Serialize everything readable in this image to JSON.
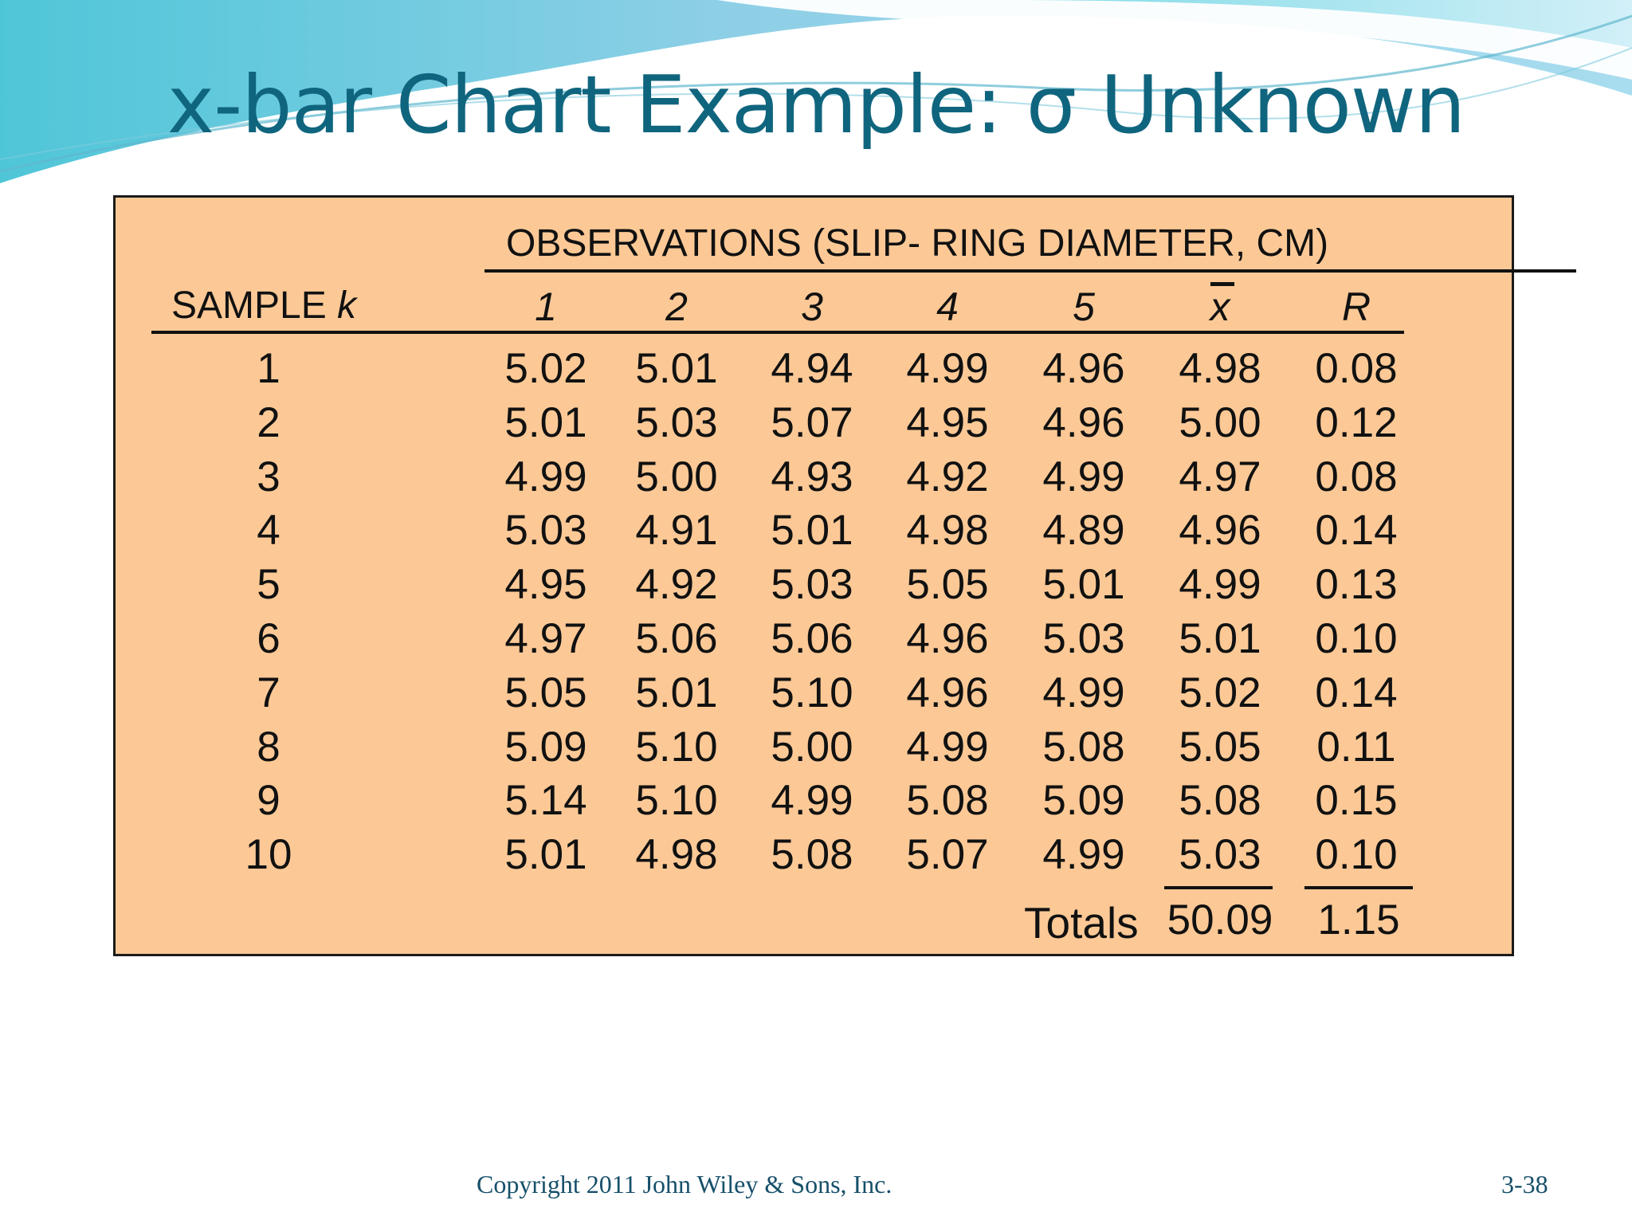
{
  "slide": {
    "title": "x-bar Chart Example: σ Unknown"
  },
  "table": {
    "observations_heading": "OBSERVATIONS (SLIP- RING DIAMETER, CM)",
    "sample_label_prefix": "SAMPLE ",
    "sample_label_var": "k",
    "column_headers": [
      "1",
      "2",
      "3",
      "4",
      "5",
      "x",
      "R"
    ],
    "rows": [
      {
        "k": "1",
        "obs": [
          "5.02",
          "5.01",
          "4.94",
          "4.99",
          "4.96"
        ],
        "xbar": "4.98",
        "r": "0.08"
      },
      {
        "k": "2",
        "obs": [
          "5.01",
          "5.03",
          "5.07",
          "4.95",
          "4.96"
        ],
        "xbar": "5.00",
        "r": "0.12"
      },
      {
        "k": "3",
        "obs": [
          "4.99",
          "5.00",
          "4.93",
          "4.92",
          "4.99"
        ],
        "xbar": "4.97",
        "r": "0.08"
      },
      {
        "k": "4",
        "obs": [
          "5.03",
          "4.91",
          "5.01",
          "4.98",
          "4.89"
        ],
        "xbar": "4.96",
        "r": "0.14"
      },
      {
        "k": "5",
        "obs": [
          "4.95",
          "4.92",
          "5.03",
          "5.05",
          "5.01"
        ],
        "xbar": "4.99",
        "r": "0.13"
      },
      {
        "k": "6",
        "obs": [
          "4.97",
          "5.06",
          "5.06",
          "4.96",
          "5.03"
        ],
        "xbar": "5.01",
        "r": "0.10"
      },
      {
        "k": "7",
        "obs": [
          "5.05",
          "5.01",
          "5.10",
          "4.96",
          "4.99"
        ],
        "xbar": "5.02",
        "r": "0.14"
      },
      {
        "k": "8",
        "obs": [
          "5.09",
          "5.10",
          "5.00",
          "4.99",
          "5.08"
        ],
        "xbar": "5.05",
        "r": "0.11"
      },
      {
        "k": "9",
        "obs": [
          "5.14",
          "5.10",
          "4.99",
          "5.08",
          "5.09"
        ],
        "xbar": "5.08",
        "r": "0.15"
      },
      {
        "k": "10",
        "obs": [
          "5.01",
          "4.98",
          "5.08",
          "5.07",
          "4.99"
        ],
        "xbar": "5.03",
        "r": "0.10"
      }
    ],
    "totals_label": "Totals",
    "totals_xbar": "50.09",
    "totals_r": "1.15"
  },
  "footer": {
    "copyright": "Copyright 2011 John Wiley & Sons, Inc.",
    "page": "3-38"
  },
  "colors": {
    "title": "#10657e",
    "panel": "#fcc996",
    "footer": "#17506a"
  }
}
